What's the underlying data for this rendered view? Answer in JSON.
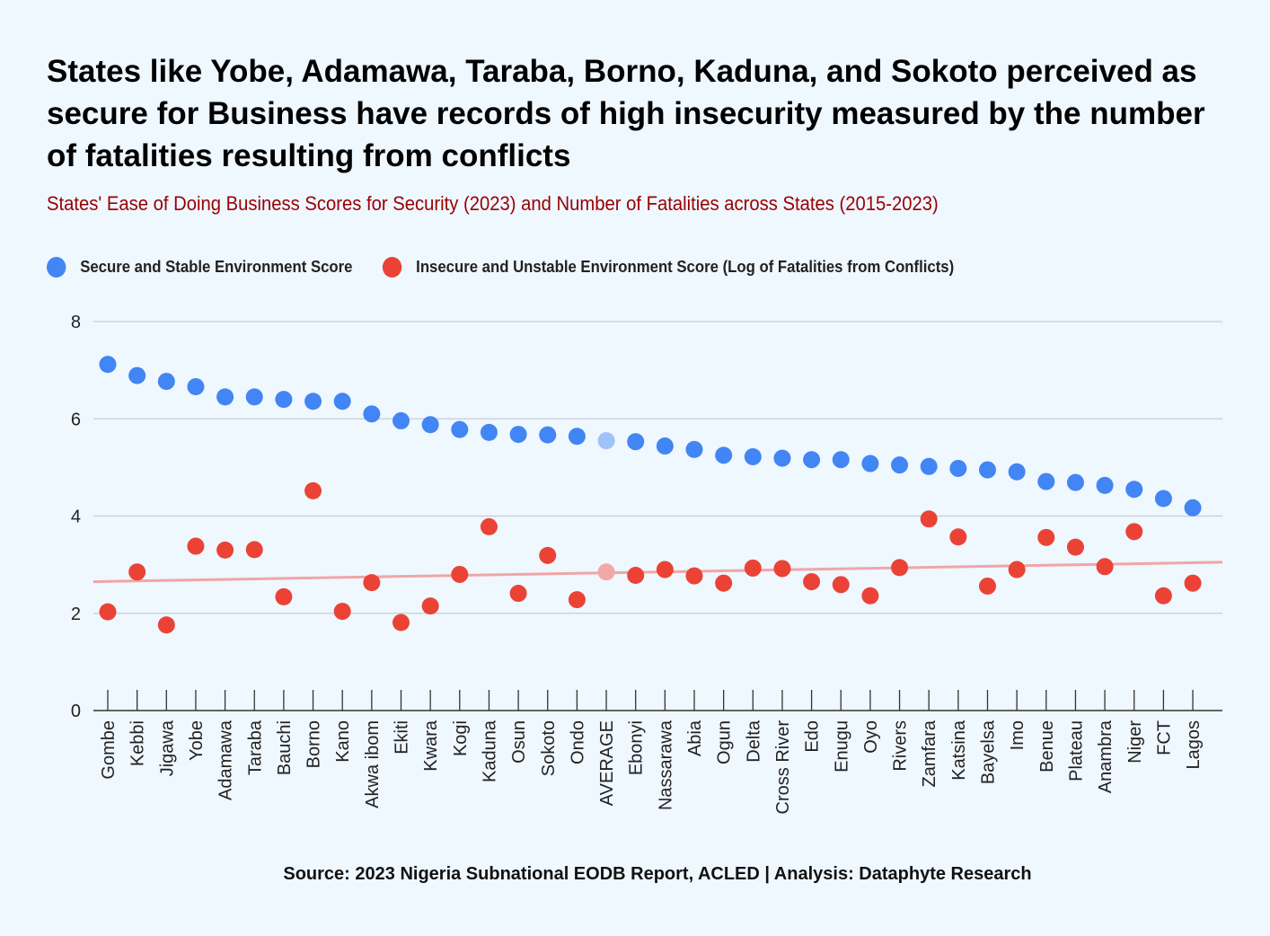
{
  "header": {
    "title": "States like Yobe, Adamawa, Taraba, Borno, Kaduna, and Sokoto perceived as secure for Business have records of high insecurity measured by the number of fatalities resulting from conflicts",
    "subtitle": "States' Ease of Doing Business Scores for Security (2023) and Number of Fatalities across States (2015-2023)"
  },
  "footer": {
    "source": "Source: 2023 Nigeria Subnational EODB Report, ACLED | Analysis: Dataphyte Research"
  },
  "chart_data": {
    "type": "scatter",
    "title": "States like Yobe, Adamawa, Taraba, Borno, Kaduna, and Sokoto perceived as secure for Business have records of high insecurity measured by the number of fatalities resulting from conflicts",
    "subtitle": "States' Ease of Doing Business Scores for Security (2023) and Number of Fatalities across States (2015-2023)",
    "xlabel": "",
    "ylabel": "",
    "ylim": [
      0,
      8
    ],
    "yticks": [
      0,
      2,
      4,
      6,
      8
    ],
    "grid": true,
    "legend_position": "top-left",
    "highlight_category": "AVERAGE",
    "categories": [
      "Gombe",
      "Kebbi",
      "Jigawa",
      "Yobe",
      "Adamawa",
      "Taraba",
      "Bauchi",
      "Borno",
      "Kano",
      "Akwa ibom",
      "Ekiti",
      "Kwara",
      "Kogi",
      "Kaduna",
      "Osun",
      "Sokoto",
      "Ondo",
      "AVERAGE",
      "Ebonyi",
      "Nassarawa",
      "Abia",
      "Ogun",
      "Delta",
      "Cross River",
      "Edo",
      "Enugu",
      "Oyo",
      "Rivers",
      "Zamfara",
      "Katsina",
      "Bayelsa",
      "Imo",
      "Benue",
      "Plateau",
      "Anambra",
      "Niger",
      "FCT",
      "Lagos"
    ],
    "series": [
      {
        "name": "Secure and Stable Environment Score",
        "color": "#4285f4",
        "highlight_color": "#9fc2f8",
        "values": [
          7.12,
          6.89,
          6.77,
          6.66,
          6.45,
          6.45,
          6.4,
          6.36,
          6.36,
          6.1,
          5.96,
          5.88,
          5.78,
          5.72,
          5.68,
          5.67,
          5.64,
          5.55,
          5.53,
          5.44,
          5.37,
          5.25,
          5.22,
          5.19,
          5.16,
          5.16,
          5.08,
          5.05,
          5.02,
          4.98,
          4.95,
          4.91,
          4.71,
          4.69,
          4.63,
          4.55,
          4.36,
          4.17
        ]
      },
      {
        "name": "Insecure and Unstable Environment Score (Log of Fatalities from Conflicts)",
        "color": "#ea4335",
        "highlight_color": "#f2a8a6",
        "values": [
          2.03,
          2.85,
          1.76,
          3.38,
          3.3,
          3.31,
          2.34,
          4.52,
          2.04,
          2.63,
          1.81,
          2.15,
          2.8,
          3.78,
          2.41,
          3.19,
          2.28,
          2.85,
          2.78,
          2.9,
          2.77,
          2.62,
          2.93,
          2.92,
          2.65,
          2.59,
          2.36,
          2.94,
          3.94,
          3.57,
          2.56,
          2.9,
          3.56,
          3.36,
          2.96,
          3.68,
          2.36,
          2.62
        ]
      }
    ],
    "trendline": {
      "series": "Insecure and Unstable Environment Score (Log of Fatalities from Conflicts)",
      "color": "#f0a6a6",
      "start": 2.65,
      "end": 3.05
    }
  }
}
